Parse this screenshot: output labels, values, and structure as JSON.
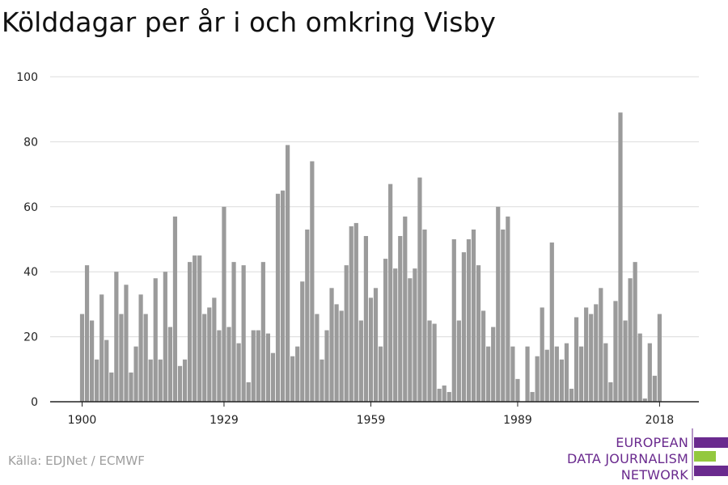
{
  "chart_data": {
    "type": "bar",
    "title": "Kölddagar per år i och omkring Visby",
    "xlabel": "",
    "ylabel": "",
    "x_start": 1900,
    "values": [
      27,
      42,
      25,
      13,
      33,
      19,
      9,
      40,
      27,
      36,
      9,
      17,
      33,
      27,
      13,
      38,
      13,
      40,
      23,
      57,
      11,
      13,
      43,
      45,
      45,
      27,
      29,
      32,
      22,
      60,
      23,
      43,
      18,
      42,
      6,
      22,
      22,
      43,
      21,
      15,
      64,
      65,
      79,
      14,
      17,
      37,
      53,
      74,
      27,
      13,
      22,
      35,
      30,
      28,
      42,
      54,
      55,
      25,
      51,
      32,
      35,
      17,
      44,
      67,
      41,
      51,
      57,
      38,
      41,
      69,
      53,
      25,
      24,
      4,
      5,
      3,
      50,
      25,
      46,
      50,
      53,
      42,
      28,
      17,
      23,
      60,
      53,
      57,
      17,
      7,
      0,
      17,
      3,
      14,
      29,
      16,
      49,
      17,
      13,
      18,
      4,
      26,
      17,
      29,
      27,
      30,
      35,
      18,
      6,
      31,
      89,
      25,
      38,
      43,
      21,
      1,
      18,
      8,
      27
    ],
    "xticks": [
      "1900",
      "1929",
      "1959",
      "1989",
      "2018"
    ],
    "yticks": [
      "0",
      "20",
      "40",
      "60",
      "80",
      "100"
    ],
    "ylim": [
      0,
      100
    ],
    "bar_color": "#9b9b9b",
    "grid": true
  },
  "source": "Källa: EDJNet / ECMWF",
  "logo": {
    "lines": [
      "EUROPEAN",
      "DATA JOURNALISM",
      "NETWORK"
    ],
    "purple": "#6a2a8e",
    "green": "#93c83e"
  }
}
